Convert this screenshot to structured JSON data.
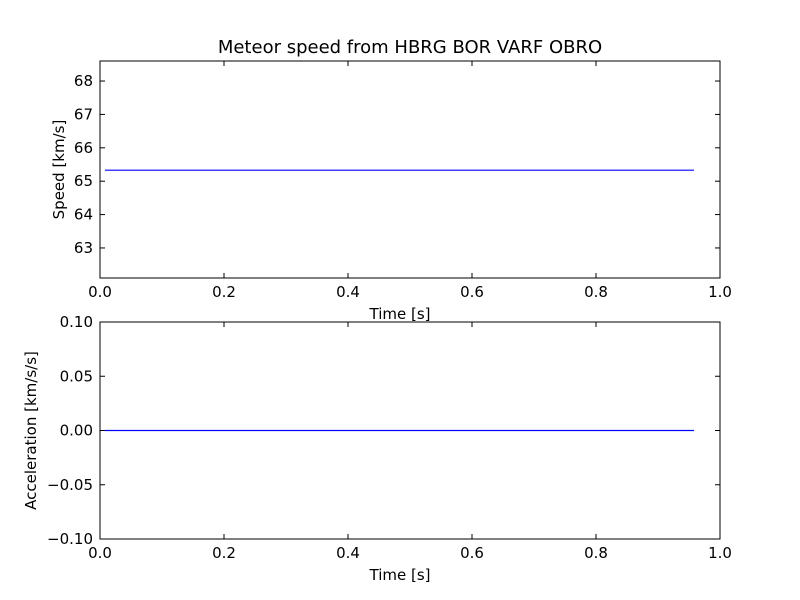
{
  "title": "Meteor speed from  HBRG BOR VARF OBRO",
  "chart_data": [
    {
      "type": "line",
      "title": "Meteor speed from  HBRG BOR VARF OBRO",
      "xlabel": "Time [s]",
      "ylabel": "Speed [km/s]",
      "xlim": [
        0.0,
        1.0
      ],
      "ylim": [
        62.1,
        68.6
      ],
      "xticks": [
        0.0,
        0.2,
        0.4,
        0.6,
        0.8,
        1.0
      ],
      "xtick_labels": [
        "0.0",
        "0.2",
        "0.4",
        "0.6",
        "0.8",
        "1.0"
      ],
      "yticks": [
        63,
        64,
        65,
        66,
        67,
        68
      ],
      "ytick_labels": [
        "63",
        "64",
        "65",
        "66",
        "67",
        "68"
      ],
      "grid": false,
      "color": "#0000ff",
      "series": [
        {
          "x": [
            0.008,
            0.958
          ],
          "y": [
            65.33,
            65.33
          ]
        }
      ]
    },
    {
      "type": "line",
      "xlabel": "Time [s]",
      "ylabel": "Acceleration [km/s/s]",
      "xlim": [
        0.0,
        1.0
      ],
      "ylim": [
        -0.1,
        0.1
      ],
      "xticks": [
        0.0,
        0.2,
        0.4,
        0.6,
        0.8,
        1.0
      ],
      "xtick_labels": [
        "0.0",
        "0.2",
        "0.4",
        "0.6",
        "0.8",
        "1.0"
      ],
      "yticks": [
        -0.1,
        -0.05,
        0.0,
        0.05,
        0.1
      ],
      "ytick_labels": [
        "−0.10",
        "−0.05",
        "0.00",
        "0.05",
        "0.10"
      ],
      "grid": false,
      "color": "#0000ff",
      "series": [
        {
          "x": [
            0.008,
            0.958
          ],
          "y": [
            0.0,
            0.0
          ]
        }
      ]
    }
  ]
}
